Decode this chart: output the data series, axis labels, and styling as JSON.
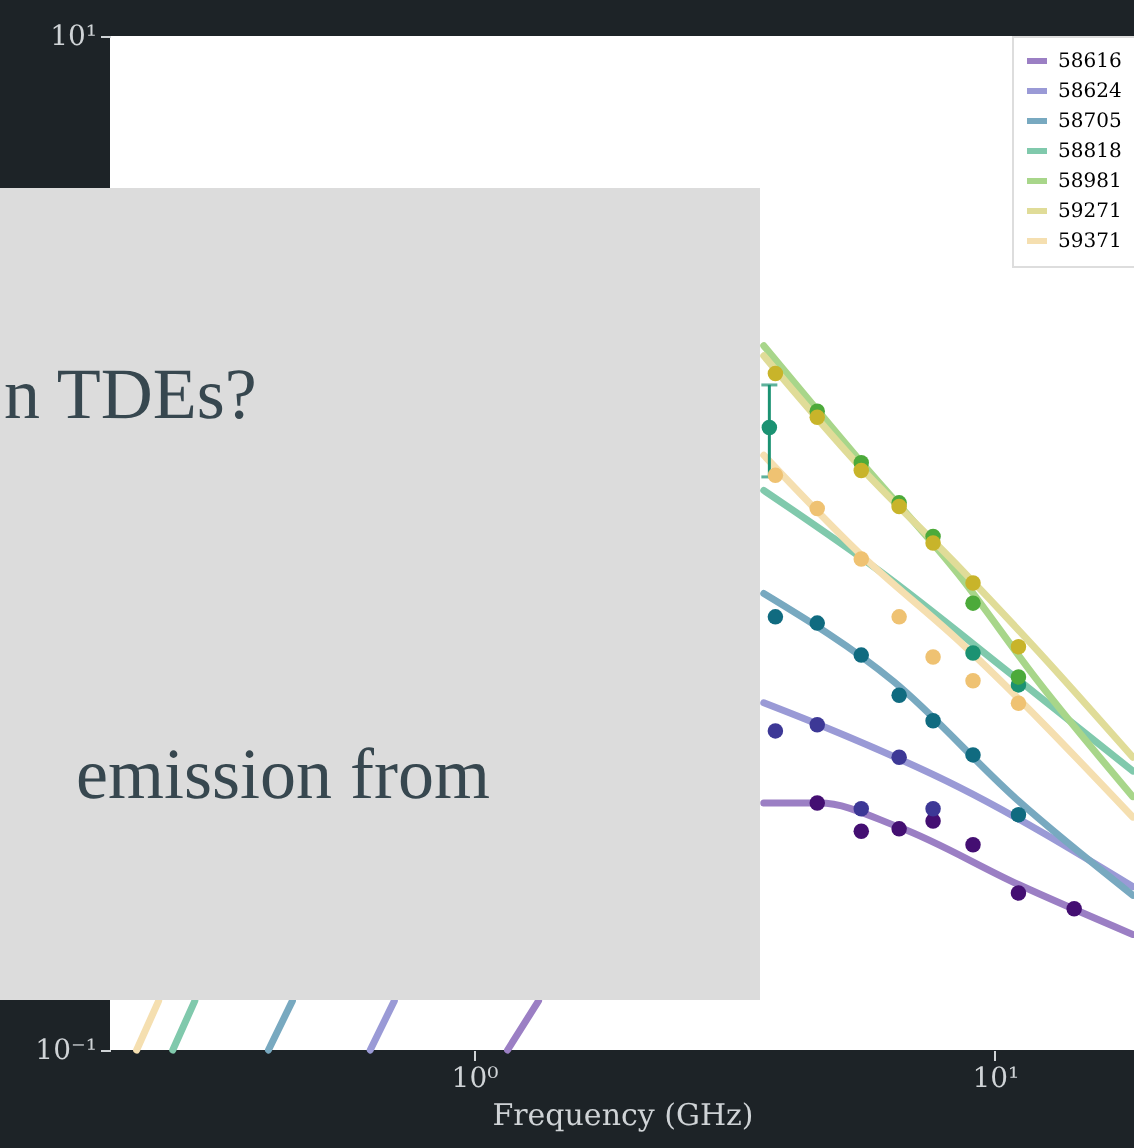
{
  "chart_data": {
    "type": "line",
    "xlabel": "Frequency (GHz)",
    "log": "xy",
    "xlim": [
      0.2,
      18.5
    ],
    "ylim": [
      0.1,
      10
    ],
    "xticks": [
      {
        "value": 1,
        "label": "10⁰"
      },
      {
        "value": 10,
        "label": "10¹"
      }
    ],
    "yticks": [
      {
        "value": 0.1,
        "label": "10⁻¹"
      },
      {
        "value": 10,
        "label": "10¹"
      }
    ],
    "grid": false,
    "legend": "top right",
    "annotations": [
      "n TDEs?",
      "emission from"
    ],
    "series": [
      {
        "name": "58616",
        "color": "#9b7fc4",
        "x": [
          3.6,
          4.6,
          6.55,
          11.1,
          18.4
        ],
        "values": [
          0.307,
          0.307,
          0.275,
          0.212,
          0.169
        ]
      },
      {
        "name": "58624",
        "color": "#9a9ad6",
        "x": [
          3.6,
          4.6,
          8.53,
          18.4
        ],
        "values": [
          0.484,
          0.438,
          0.33,
          0.21
        ]
      },
      {
        "name": "58705",
        "color": "#78a9c0",
        "x": [
          3.6,
          6.38,
          11.1,
          18.4
        ],
        "values": [
          0.795,
          0.534,
          0.31,
          0.202
        ]
      },
      {
        "name": "58818",
        "color": "#80c9ac",
        "x": [
          3.6,
          6.0,
          10.8,
          18.4
        ],
        "values": [
          1.27,
          0.881,
          0.549,
          0.355
        ]
      },
      {
        "name": "58981",
        "color": "#a8d68a",
        "x": [
          3.6,
          5.49,
          8.53,
          12.1,
          18.4
        ],
        "values": [
          2.45,
          1.46,
          0.865,
          0.534,
          0.316
        ]
      },
      {
        "name": "59271",
        "color": "#e0dc98",
        "x": [
          3.6,
          5.49,
          8.53,
          12.1,
          18.4
        ],
        "values": [
          2.34,
          1.42,
          0.897,
          0.612,
          0.378
        ]
      },
      {
        "name": "59371",
        "color": "#f5dfb0",
        "x": [
          3.6,
          5.54,
          8.53,
          18.4
        ],
        "values": [
          1.49,
          0.947,
          0.641,
          0.288
        ]
      },
      {
        "color": "#9b7fc4",
        "x": [
          1.16,
          1.33
        ],
        "values": [
          0.1,
          0.125
        ]
      },
      {
        "color": "#9a9ad6",
        "x": [
          0.632,
          0.703
        ],
        "values": [
          0.1,
          0.125
        ]
      },
      {
        "color": "#78a9c0",
        "x": [
          0.403,
          0.448
        ],
        "values": [
          0.1,
          0.125
        ]
      },
      {
        "color": "#80c9ac",
        "x": [
          0.264,
          0.291
        ],
        "values": [
          0.1,
          0.125
        ]
      },
      {
        "color": "#f5dfb0",
        "x": [
          0.225,
          0.248
        ],
        "values": [
          0.1,
          0.125
        ]
      },
      {
        "type": "scatter",
        "color": "#440f72",
        "x": [
          4.56,
          5.54,
          6.55,
          7.61,
          9.08,
          11.1,
          14.2
        ],
        "values": [
          0.307,
          0.27,
          0.273,
          0.283,
          0.254,
          0.204,
          0.19
        ]
      },
      {
        "type": "scatter",
        "color": "#3d3896",
        "x": [
          3.79,
          4.56,
          5.54,
          6.55,
          7.61
        ],
        "values": [
          0.426,
          0.438,
          0.299,
          0.378,
          0.299
        ]
      },
      {
        "type": "scatter",
        "color": "#106b80",
        "x": [
          3.79,
          4.56,
          5.54,
          6.55,
          7.61,
          9.08,
          11.1
        ],
        "values": [
          0.715,
          0.695,
          0.601,
          0.501,
          0.446,
          0.382,
          0.291
        ]
      },
      {
        "type": "scatter",
        "color": "#1b9272",
        "x": [
          3.69,
          9.08,
          11.1
        ],
        "values": [
          1.69,
          0.607,
          0.525
        ],
        "errors": [
          [
            1.35,
            2.05
          ],
          null,
          null
        ]
      },
      {
        "type": "scatter",
        "color": "#4caa3a",
        "x": [
          4.56,
          5.54,
          6.55,
          7.61,
          9.08,
          11.1
        ],
        "values": [
          1.82,
          1.44,
          1.2,
          1.03,
          0.761,
          0.544
        ]
      },
      {
        "type": "scatter",
        "color": "#c8b42a",
        "x": [
          3.79,
          4.56,
          5.54,
          6.55,
          7.61,
          9.08,
          11.1
        ],
        "values": [
          2.16,
          1.77,
          1.39,
          1.18,
          1.0,
          0.834,
          0.624
        ]
      },
      {
        "type": "scatter",
        "color": "#efc272",
        "x": [
          3.79,
          4.56,
          5.54,
          6.55,
          7.61,
          9.08,
          11.1
        ],
        "values": [
          1.36,
          1.17,
          0.93,
          0.715,
          0.596,
          0.535,
          0.483
        ]
      }
    ]
  }
}
